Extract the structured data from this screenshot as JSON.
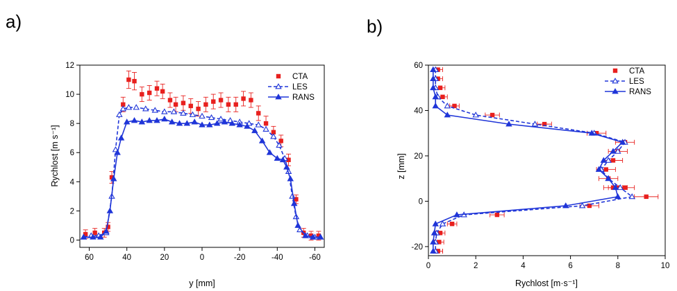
{
  "panels": {
    "a": {
      "label": "a)"
    },
    "b": {
      "label": "b)"
    }
  },
  "chart_data": [
    {
      "type": "line",
      "panel": "a",
      "title": "",
      "xlabel": "y [mm]",
      "ylabel": "Rychlost [m s⁻¹]",
      "xlim": [
        65,
        -65
      ],
      "ylim": [
        -0.5,
        12
      ],
      "xticks": [
        60,
        40,
        20,
        0,
        -20,
        -40,
        -60
      ],
      "yticks": [
        0,
        2,
        4,
        6,
        8,
        10,
        12
      ],
      "x_reversed": true,
      "legend": {
        "position": "top-right",
        "entries": [
          "CTA",
          "LES",
          "RANS"
        ]
      },
      "series": [
        {
          "name": "CTA",
          "style": "scatter",
          "marker": "square",
          "color": "#e8201e",
          "error_bars": true,
          "x": [
            62,
            57,
            52,
            50,
            48,
            42,
            39,
            36,
            32,
            28,
            24,
            21,
            17,
            14,
            10,
            6,
            2,
            -2,
            -6,
            -10,
            -14,
            -18,
            -22,
            -26,
            -30,
            -34,
            -38,
            -42,
            -46,
            -50,
            -54,
            -58,
            -62
          ],
          "y": [
            0.4,
            0.5,
            0.5,
            0.9,
            4.3,
            9.3,
            11.0,
            10.9,
            10.0,
            10.1,
            10.4,
            10.2,
            9.6,
            9.3,
            9.4,
            9.2,
            9.0,
            9.3,
            9.5,
            9.6,
            9.3,
            9.3,
            9.7,
            9.6,
            8.7,
            8.0,
            7.4,
            6.8,
            5.5,
            2.8,
            0.5,
            0.3,
            0.3
          ],
          "err": [
            0.3,
            0.3,
            0.3,
            0.3,
            0.4,
            0.5,
            0.6,
            0.6,
            0.5,
            0.5,
            0.5,
            0.5,
            0.5,
            0.5,
            0.5,
            0.5,
            0.5,
            0.5,
            0.5,
            0.5,
            0.5,
            0.5,
            0.5,
            0.5,
            0.5,
            0.5,
            0.4,
            0.4,
            0.4,
            0.3,
            0.3,
            0.3,
            0.3
          ]
        },
        {
          "name": "LES",
          "style": "dashed",
          "marker": "triangle-open",
          "color": "#1f35d8",
          "x": [
            63,
            59,
            55,
            51,
            48,
            46,
            44,
            42,
            39,
            35,
            30,
            25,
            20,
            15,
            10,
            5,
            0,
            -5,
            -10,
            -15,
            -20,
            -25,
            -30,
            -34,
            -38,
            -41,
            -44,
            -46,
            -48,
            -50,
            -52,
            -56,
            -60,
            -63
          ],
          "y": [
            0.2,
            0.3,
            0.3,
            0.5,
            3.0,
            6.2,
            8.6,
            9.0,
            9.1,
            9.1,
            9.0,
            8.9,
            8.8,
            8.8,
            8.7,
            8.6,
            8.5,
            8.4,
            8.3,
            8.2,
            8.1,
            8.0,
            7.9,
            7.6,
            7.1,
            6.5,
            5.6,
            4.7,
            3.0,
            1.6,
            0.7,
            0.3,
            0.2,
            0.2
          ]
        },
        {
          "name": "RANS",
          "style": "solid",
          "marker": "triangle",
          "color": "#1f35d8",
          "x": [
            63,
            58,
            54,
            51,
            49,
            47,
            45,
            43,
            40,
            36,
            32,
            28,
            24,
            20,
            16,
            12,
            8,
            4,
            0,
            -4,
            -8,
            -12,
            -16,
            -20,
            -24,
            -28,
            -32,
            -36,
            -40,
            -43,
            -45,
            -47,
            -49,
            -51,
            -55,
            -59,
            -63
          ],
          "y": [
            0.2,
            0.2,
            0.2,
            0.6,
            2.0,
            4.2,
            6.0,
            7.0,
            8.1,
            8.2,
            8.1,
            8.2,
            8.2,
            8.3,
            8.1,
            8.0,
            8.0,
            8.1,
            7.9,
            7.9,
            8.0,
            8.1,
            8.0,
            7.9,
            7.8,
            7.5,
            6.8,
            6.0,
            5.6,
            5.5,
            5.0,
            4.2,
            2.5,
            1.0,
            0.3,
            0.2,
            0.2
          ]
        }
      ]
    },
    {
      "type": "line",
      "panel": "b",
      "title": "",
      "xlabel": "Rychlost [m·s⁻¹]",
      "ylabel": "z [mm]",
      "xlim": [
        0,
        10
      ],
      "ylim": [
        -24,
        60
      ],
      "xticks": [
        0,
        2,
        4,
        6,
        8,
        10
      ],
      "yticks": [
        -20,
        0,
        20,
        40,
        60
      ],
      "legend": {
        "position": "top-right",
        "entries": [
          "CTA",
          "LES",
          "RANS"
        ]
      },
      "series": [
        {
          "name": "CTA",
          "style": "scatter",
          "marker": "square",
          "color": "#e8201e",
          "error_bars": true,
          "x": [
            0.4,
            0.4,
            0.5,
            0.6,
            1.1,
            2.7,
            4.9,
            7.1,
            8.3,
            8.0,
            7.8,
            7.5,
            7.6,
            7.8,
            8.0,
            8.3,
            9.2,
            6.8,
            2.9,
            1.0,
            0.5,
            0.45,
            0.4,
            0.4
          ],
          "y": [
            58,
            54,
            50,
            46,
            42,
            38,
            34,
            30,
            26,
            22,
            18,
            14,
            10,
            6,
            6,
            6,
            2,
            -2,
            -6,
            -10,
            -14,
            -18,
            -22,
            -22
          ],
          "err": [
            0.2,
            0.2,
            0.2,
            0.2,
            0.2,
            0.3,
            0.3,
            0.4,
            0.4,
            0.4,
            0.4,
            0.4,
            0.4,
            0.4,
            0.4,
            0.4,
            0.5,
            0.4,
            0.3,
            0.2,
            0.2,
            0.2,
            0.2,
            0.2
          ]
        },
        {
          "name": "LES",
          "style": "dashed",
          "marker": "triangle-open",
          "color": "#1f35d8",
          "x": [
            0.3,
            0.3,
            0.3,
            0.4,
            0.8,
            2.0,
            4.5,
            7.0,
            8.3,
            8.0,
            7.6,
            7.3,
            7.6,
            8.1,
            8.6,
            6.5,
            1.5,
            0.6,
            0.35,
            0.3,
            0.3
          ],
          "y": [
            58,
            54,
            50,
            46,
            42,
            38,
            34,
            30,
            26,
            22,
            18,
            14,
            10,
            6,
            2,
            -2,
            -6,
            -10,
            -14,
            -18,
            -22
          ]
        },
        {
          "name": "RANS",
          "style": "solid",
          "marker": "triangle",
          "color": "#1f35d8",
          "x": [
            0.2,
            0.2,
            0.2,
            0.3,
            0.3,
            0.8,
            3.4,
            6.9,
            8.2,
            7.8,
            7.4,
            7.2,
            7.6,
            7.9,
            8.0,
            5.8,
            1.2,
            0.3,
            0.25,
            0.2,
            0.2
          ],
          "y": [
            58,
            54,
            50,
            46,
            42,
            38,
            34,
            30,
            26,
            22,
            18,
            14,
            10,
            6,
            2,
            -2,
            -6,
            -10,
            -14,
            -18,
            -22
          ]
        }
      ]
    }
  ]
}
